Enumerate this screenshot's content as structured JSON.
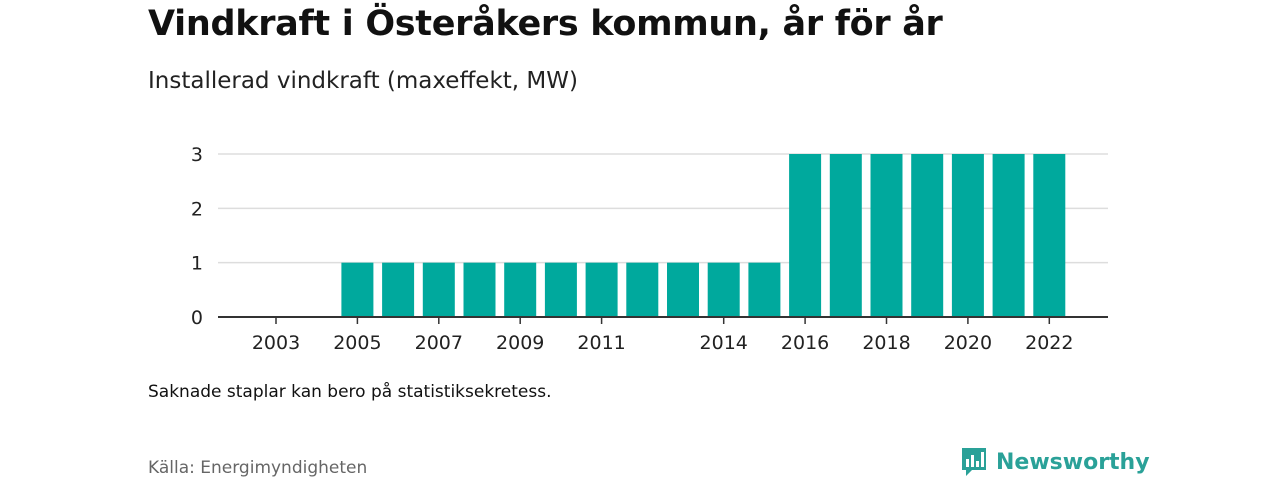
{
  "header": {
    "title": "Vindkraft i Österåkers kommun, år för år",
    "subtitle": "Installerad vindkraft (maxeffekt, MW)"
  },
  "footer": {
    "note": "Saknade staplar kan bero på statistiksekretess.",
    "source": "Källa: Energimyndigheten",
    "brand": "Newsworthy"
  },
  "colors": {
    "bar": "#00a99d",
    "grid": "#dddddd",
    "axis": "#333333",
    "brand": "#2aa198"
  },
  "chart_data": {
    "type": "bar",
    "categories": [
      "2003",
      "2004",
      "2005",
      "2006",
      "2007",
      "2008",
      "2009",
      "2010",
      "2011",
      "2012",
      "2013",
      "2014",
      "2015",
      "2016",
      "2017",
      "2018",
      "2019",
      "2020",
      "2021",
      "2022"
    ],
    "values": [
      null,
      null,
      1,
      1,
      1,
      1,
      1,
      1,
      1,
      1,
      1,
      1,
      1,
      3,
      3,
      3,
      3,
      3,
      3,
      3
    ],
    "x_tick_labels": [
      "2003",
      "2005",
      "2007",
      "2009",
      "2011",
      "2014",
      "2016",
      "2018",
      "2020",
      "2022"
    ],
    "y_ticks": [
      0,
      1,
      2,
      3
    ],
    "ylim": [
      0,
      3
    ],
    "grid": true
  }
}
